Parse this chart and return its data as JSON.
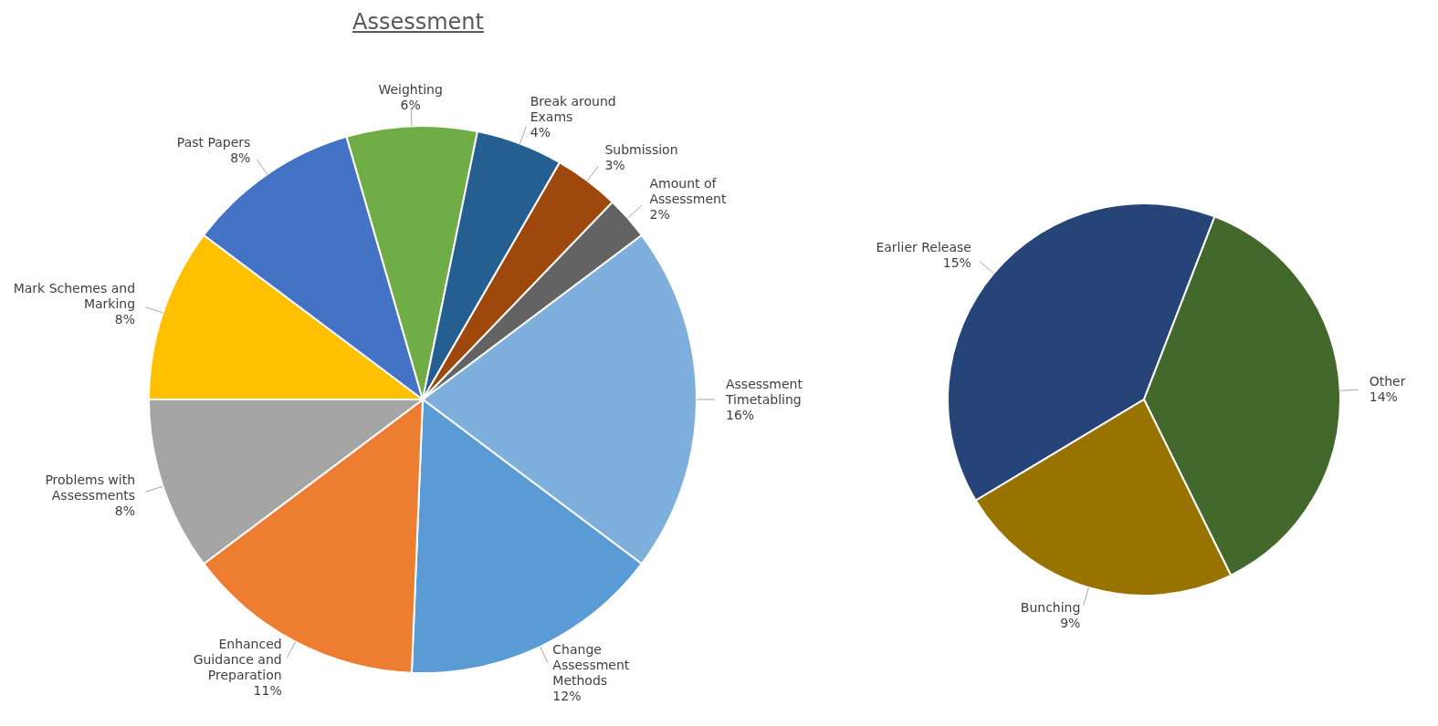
{
  "chart_data": [
    {
      "type": "pie",
      "title": "Assessment",
      "categories": [
        "Assessment Timetabling",
        "Change Assessment Methods",
        "Enhanced Guidance and Preparation",
        "Problems with Assessments",
        "Mark Schemes and Marking",
        "Past Papers",
        "Weighting",
        "Break around Exams",
        "Submission",
        "Amount of Assessment"
      ],
      "values": [
        16,
        12,
        11,
        8,
        8,
        8,
        6,
        4,
        3,
        2
      ],
      "colors": [
        "#7eafdd",
        "#5b9bd5",
        "#ed7d31",
        "#a5a5a5",
        "#ffc000",
        "#4472c4",
        "#70ad47",
        "#255e91",
        "#9e480e",
        "#636363"
      ],
      "value_labels": [
        "16%",
        "12%",
        "11%",
        "8%",
        "8%",
        "8%",
        "6%",
        "4%",
        "3%",
        "2%"
      ]
    },
    {
      "type": "pie",
      "categories": [
        "Earlier Release",
        "Other",
        "Bunching"
      ],
      "values": [
        15,
        14,
        9
      ],
      "colors": [
        "#264478",
        "#43682b",
        "#997300"
      ],
      "value_labels": [
        "15%",
        "14%",
        "9%"
      ]
    }
  ]
}
